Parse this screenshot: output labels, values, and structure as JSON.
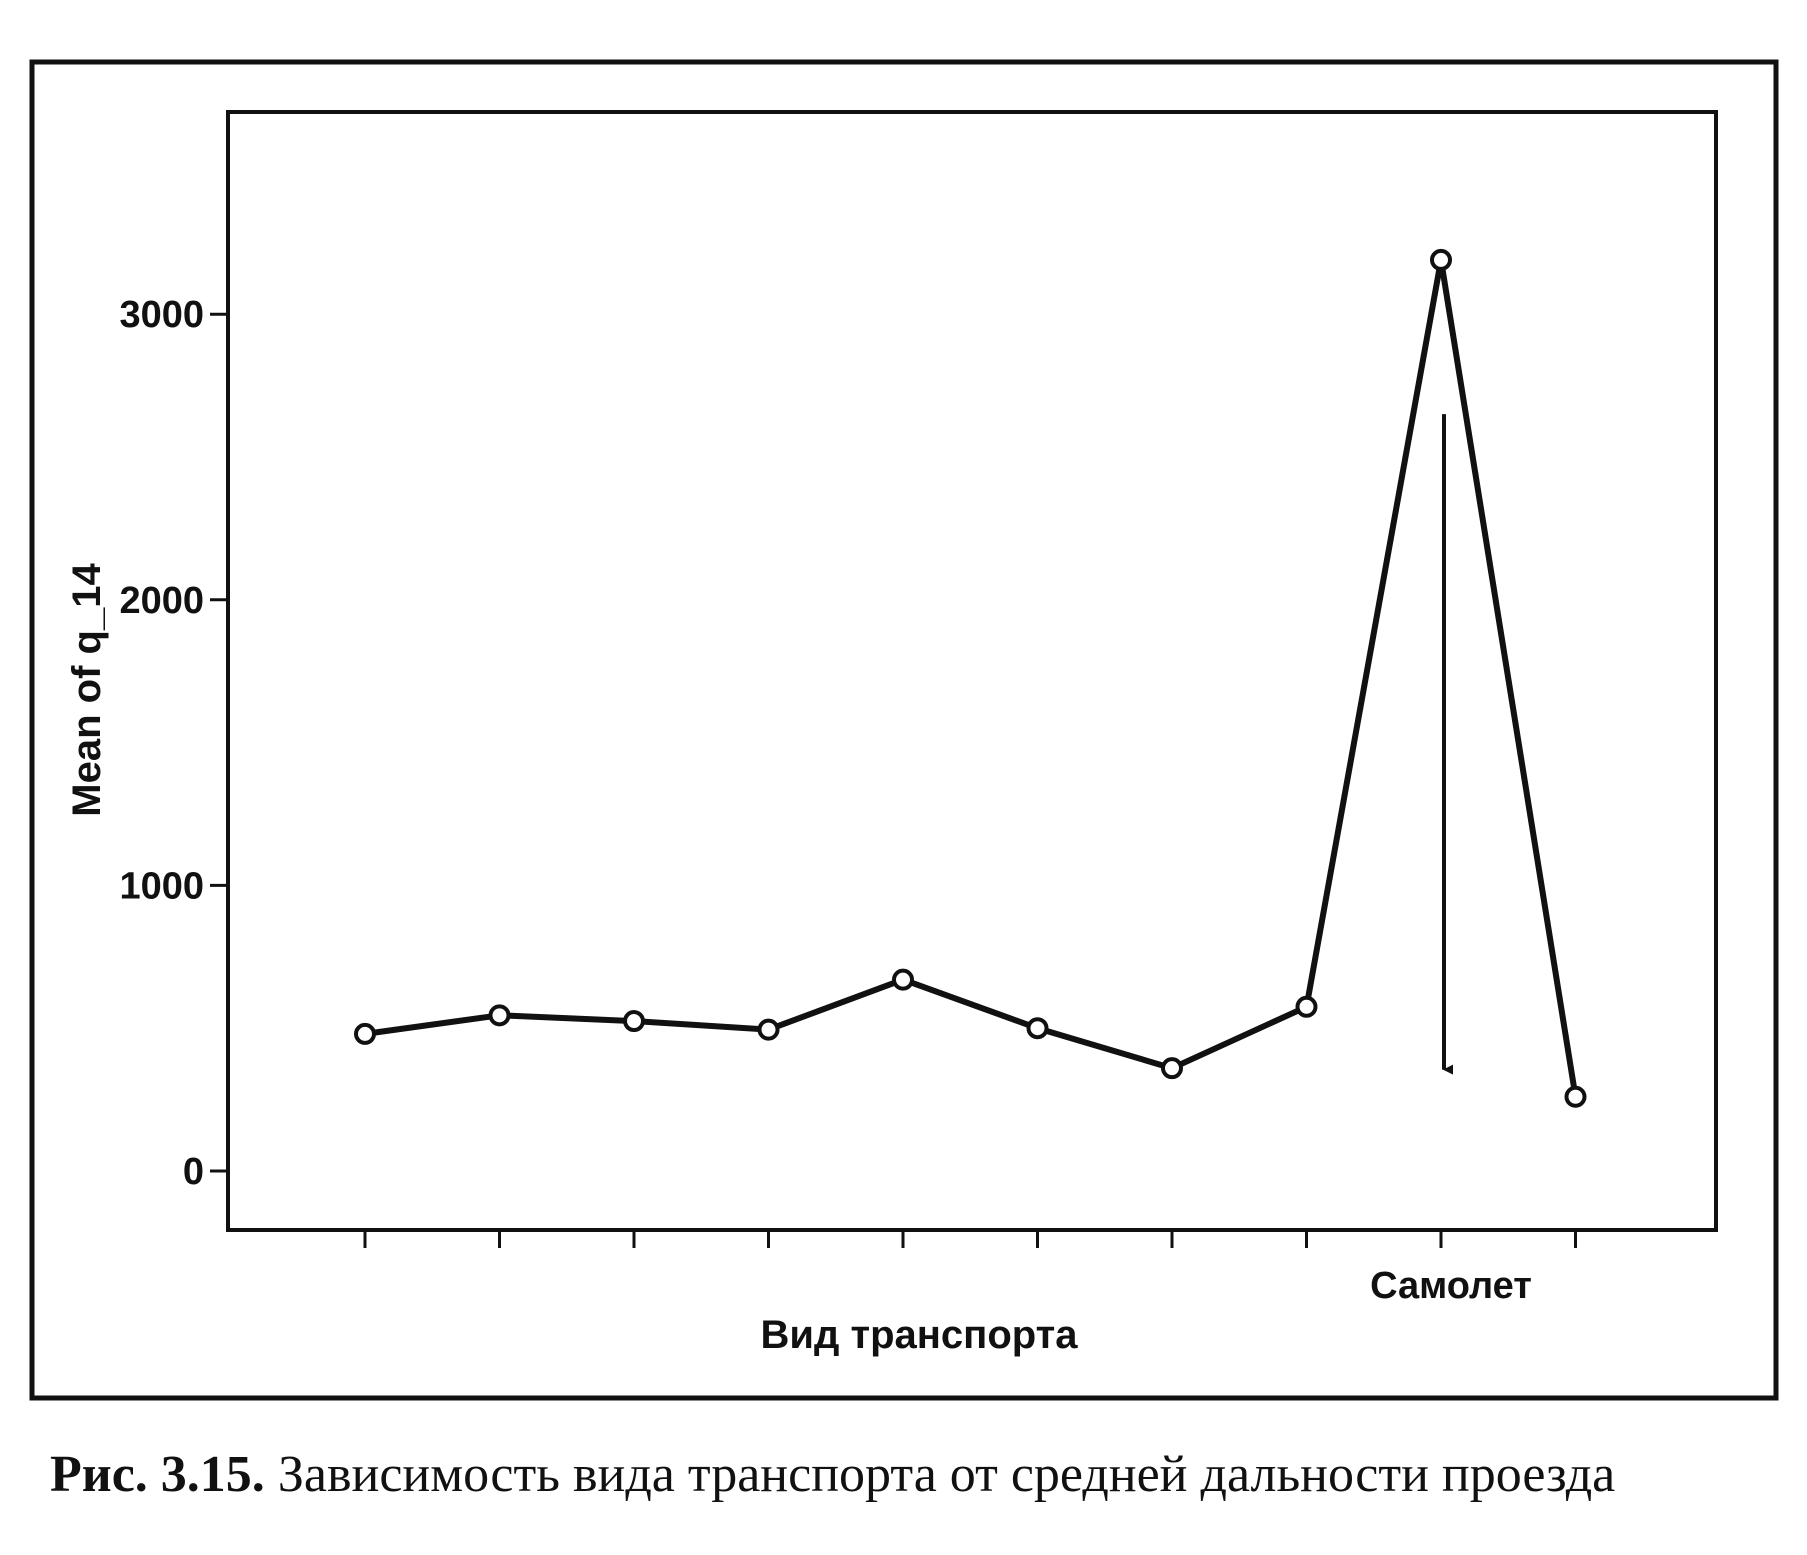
{
  "caption": {
    "label": "Рис. 3.15.",
    "text": "Зависимость вида транспорта от средней дальности проезда"
  },
  "chart_data": {
    "type": "line",
    "x": [
      1,
      2,
      3,
      4,
      5,
      6,
      7,
      8,
      9,
      10
    ],
    "x_tick_labels": [
      "",
      "",
      "",
      "",
      "",
      "",
      "",
      "",
      "Самолет",
      ""
    ],
    "values": [
      480,
      545,
      525,
      495,
      670,
      500,
      360,
      575,
      3190,
      260
    ],
    "marker": "open-circle",
    "xlabel": "Вид транспорта",
    "ylabel": "Mean of q_14",
    "yticks": [
      0,
      1000,
      2000,
      3000
    ],
    "ylim": [
      -100,
      3700
    ],
    "grid": false,
    "legend": "none",
    "annotation": {
      "type": "arrow",
      "x": 9,
      "y_from": 2650,
      "y_to": 320
    },
    "colors": {
      "line": "#111111",
      "frame": "#111111"
    }
  }
}
